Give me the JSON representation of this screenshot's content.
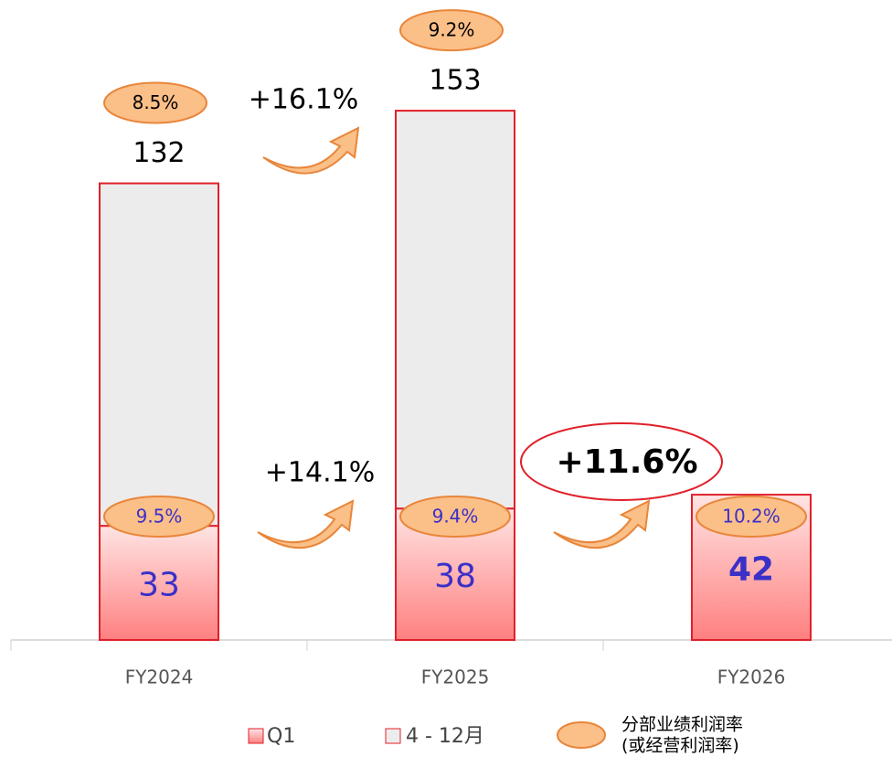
{
  "chart_data": {
    "type": "bar",
    "stacked": true,
    "categories": [
      "FY2024",
      "FY2025",
      "FY2026"
    ],
    "series": [
      {
        "name": "Q1",
        "color": "#ff8a8a",
        "values": [
          33,
          38,
          42
        ]
      },
      {
        "name": "4 - 12月",
        "color": "#ececec",
        "values": [
          99,
          115,
          null
        ]
      }
    ],
    "totals": [
      132,
      153,
      null
    ],
    "margin_total": {
      "values": [
        8.5,
        9.2,
        null
      ],
      "value_labels": [
        "8.5%",
        "9.2%",
        null
      ]
    },
    "margin_q1": {
      "values": [
        9.5,
        9.4,
        10.2
      ],
      "value_labels": [
        "9.5%",
        "9.4%",
        "10.2%"
      ]
    },
    "margin_legend": [
      "分部业绩利润率",
      "(或经营利润率)"
    ],
    "annotations": [
      "+16.1%",
      "+14.1%",
      "+11.6%"
    ],
    "ylim": [
      0,
      185
    ]
  }
}
